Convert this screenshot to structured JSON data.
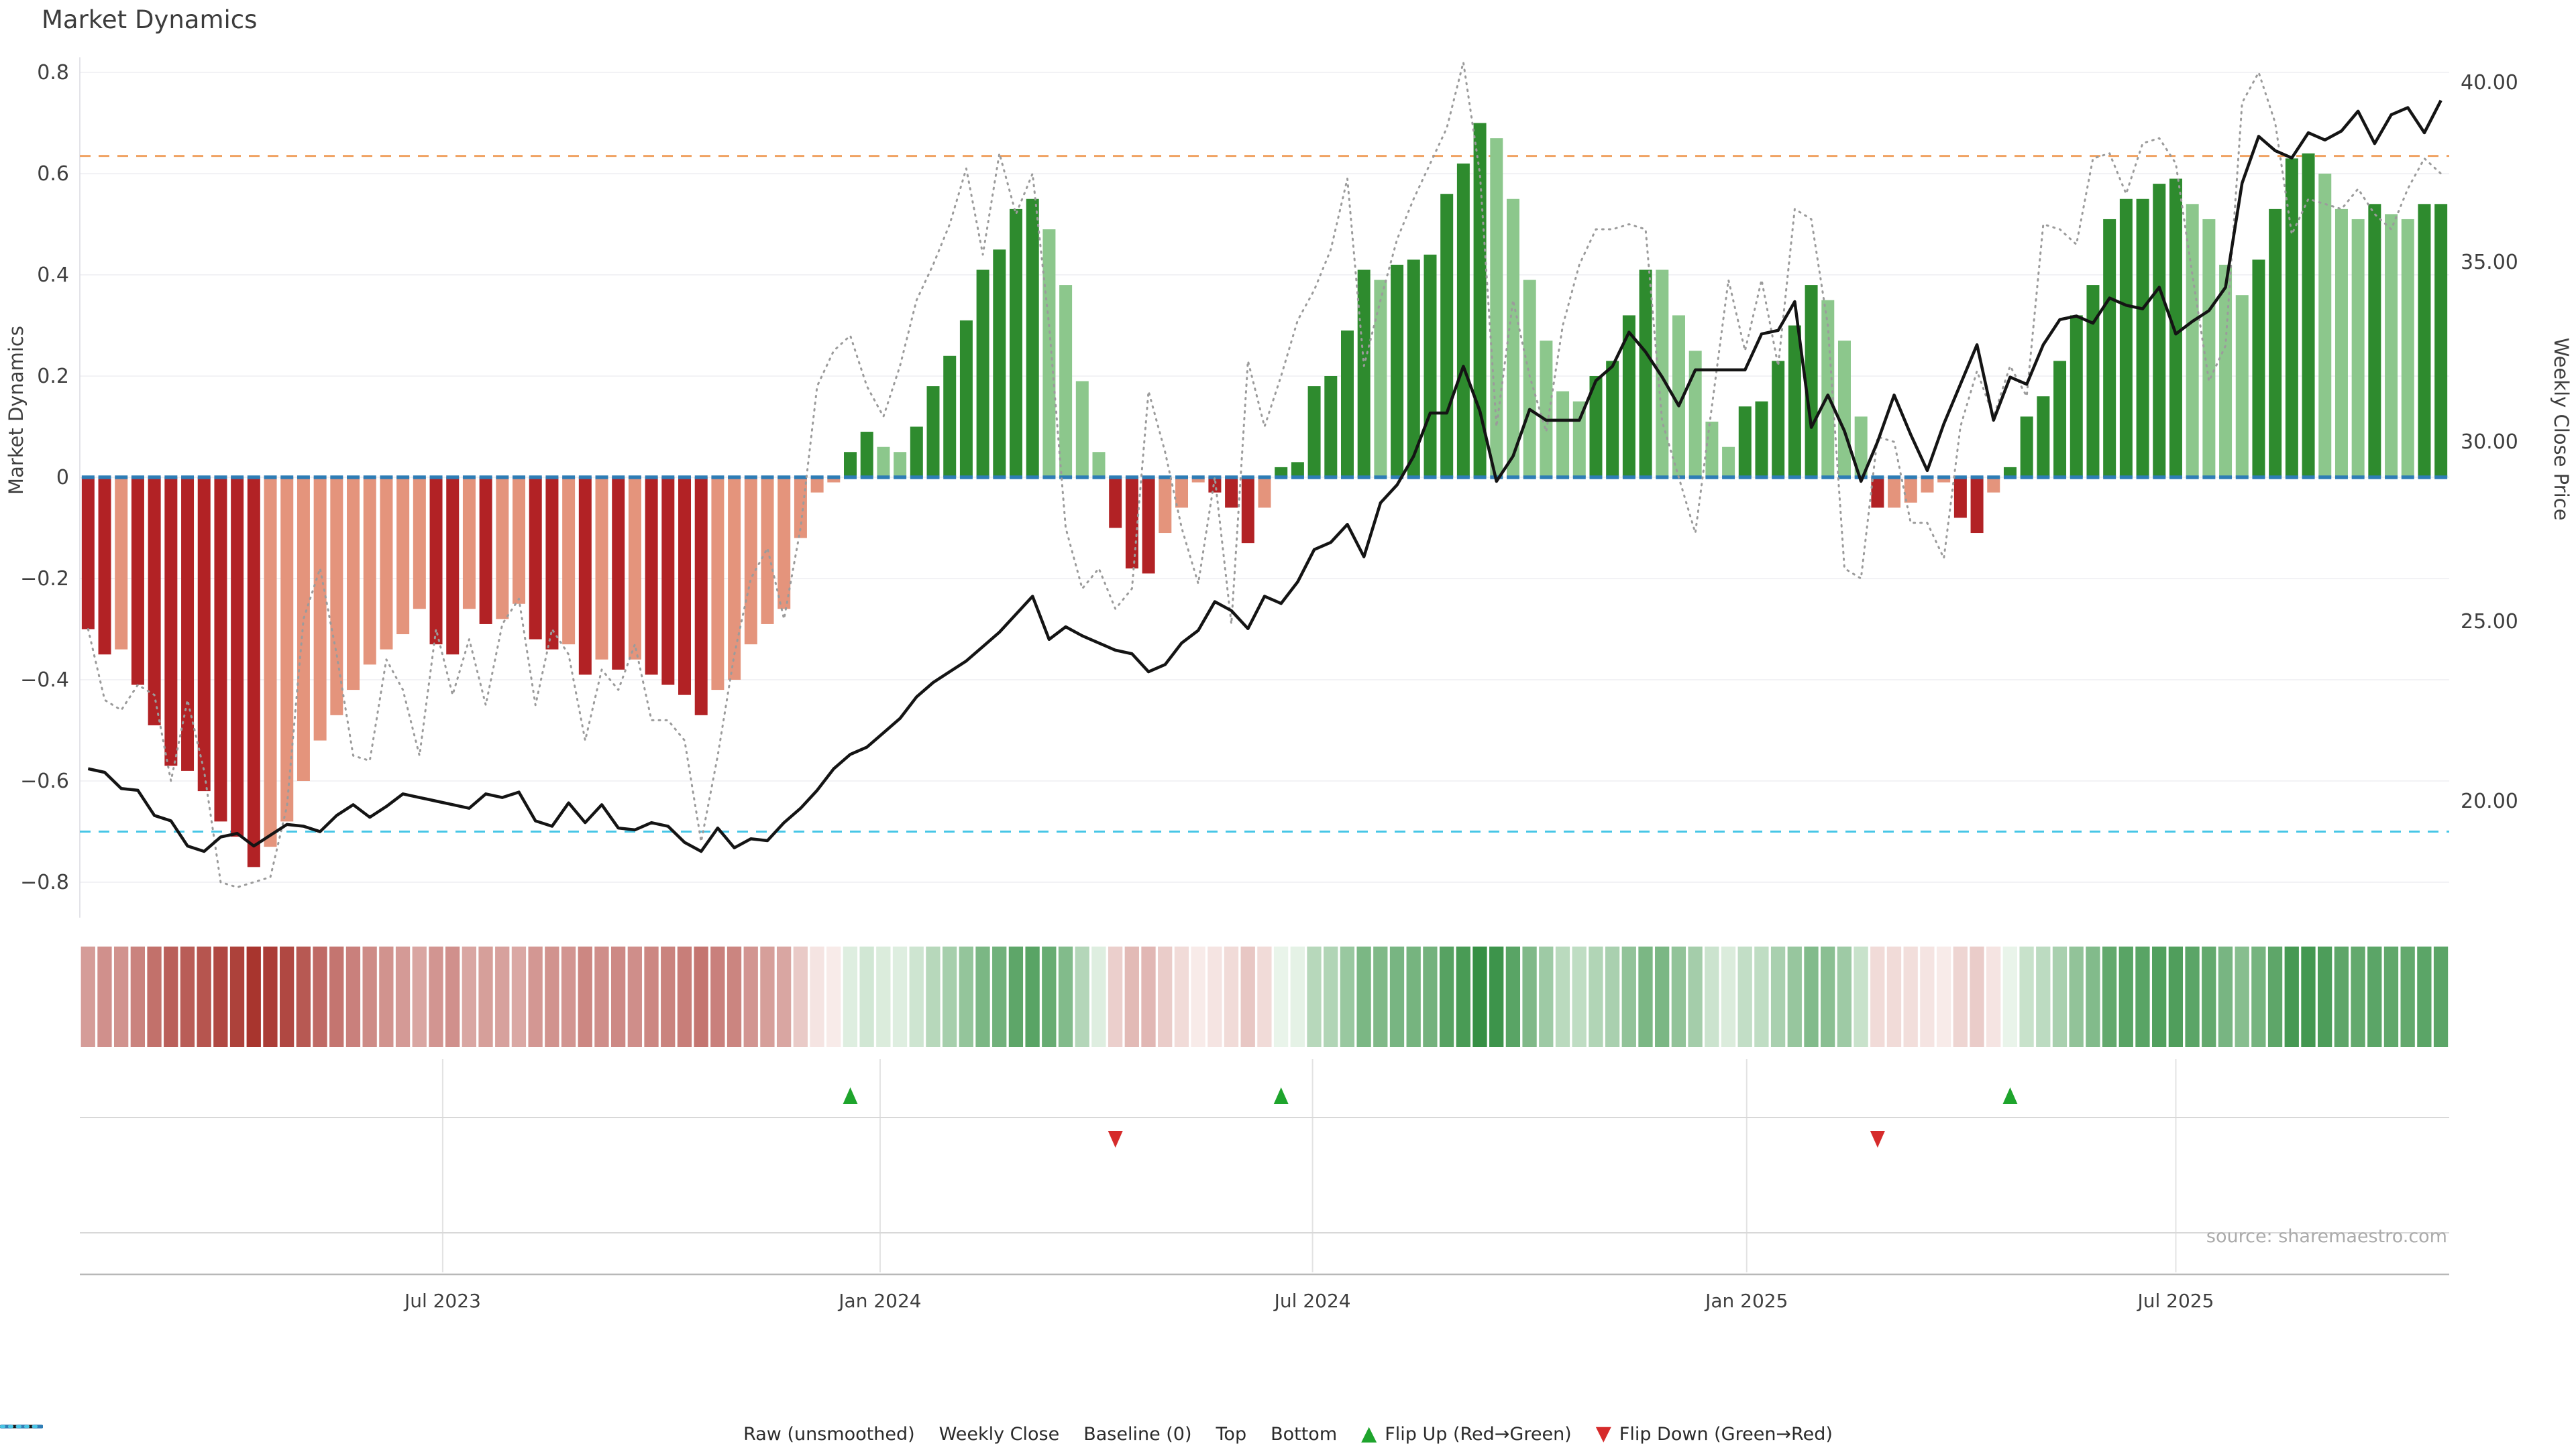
{
  "title": "Market Dynamics",
  "source": "source: sharemaestro.com",
  "axes": {
    "left": {
      "label": "Market Dynamics",
      "tick_values": [
        0.8,
        0.6,
        0.4,
        0.2,
        0,
        -0.2,
        -0.4,
        -0.6,
        -0.8
      ],
      "tick_labels": [
        "0.8",
        "0.6",
        "0.4",
        "0.2",
        "0",
        "−0.2",
        "−0.4",
        "−0.6",
        "−0.8"
      ]
    },
    "right": {
      "label": "Weekly Close Price",
      "tick_values": [
        40,
        35,
        30,
        25,
        20
      ],
      "tick_labels": [
        "40.00",
        "35.00",
        "30.00",
        "25.00",
        "20.00"
      ]
    },
    "x": {
      "tick_labels": [
        "Jul 2023",
        "Jan 2024",
        "Jul 2024",
        "Jan 2025",
        "Jul 2025"
      ],
      "tick_weeks": [
        21.4,
        47.8,
        73.9,
        100.1,
        126.0
      ]
    }
  },
  "reference_lines": {
    "baseline": {
      "label": "Baseline (0)",
      "value": 0
    },
    "top": {
      "label": "Top",
      "value": 0.635
    },
    "bottom": {
      "label": "Bottom",
      "value": -0.7
    }
  },
  "legend": {
    "items": [
      {
        "label": "Raw (unsmoothed)",
        "swatch": "dotted-gray"
      },
      {
        "label": "Weekly Close",
        "swatch": "solid-black"
      },
      {
        "label": "Baseline (0)",
        "swatch": "dashed-blue"
      },
      {
        "label": "Top",
        "swatch": "dotted-orange"
      },
      {
        "label": "Bottom",
        "swatch": "dotted-cyan"
      },
      {
        "label": "Flip Up (Red→Green)",
        "swatch": "tri-up-green"
      },
      {
        "label": "Flip Down (Green→Red)",
        "swatch": "tri-down-red"
      }
    ]
  },
  "colors": {
    "bar_dark_red": "#b22225",
    "bar_light_red": "#e4947c",
    "bar_dark_green": "#2e8b2e",
    "bar_light_green": "#8cc78c",
    "price_line": "#141414",
    "raw_line": "#9b9b9b",
    "baseline": "#2e7db6",
    "top_line": "#f0a364",
    "bottom_line": "#47c6e6",
    "flip_up": "#1ea42c",
    "flip_down": "#d62b2b",
    "heat_red_deep": "#a52f28",
    "heat_green_deep": "#2b8a3a",
    "grid": "#ededf2",
    "panel_grid": "#d8d8d8",
    "axis_line": "#b8b8b8",
    "text": "#3f3f3f",
    "source_text": "#ababab"
  },
  "chart_data": {
    "type": "combo (bar oscillator + heatmap strip + line overlays)",
    "weeks": 143,
    "ylim_left": [
      -0.87,
      0.83
    ],
    "ylim_right": [
      18.0,
      41.0
    ],
    "grid": true,
    "legend_position": "bottom-center",
    "oscillator": [
      -0.3,
      -0.35,
      -0.34,
      -0.41,
      -0.49,
      -0.57,
      -0.58,
      -0.62,
      -0.68,
      -0.71,
      -0.77,
      -0.73,
      -0.68,
      -0.6,
      -0.52,
      -0.47,
      -0.42,
      -0.37,
      -0.34,
      -0.31,
      -0.26,
      -0.33,
      -0.35,
      -0.26,
      -0.29,
      -0.28,
      -0.25,
      -0.32,
      -0.34,
      -0.33,
      -0.39,
      -0.36,
      -0.38,
      -0.36,
      -0.39,
      -0.41,
      -0.43,
      -0.47,
      -0.42,
      -0.4,
      -0.33,
      -0.29,
      -0.26,
      -0.12,
      -0.03,
      -0.01,
      0.05,
      0.09,
      0.06,
      0.05,
      0.1,
      0.18,
      0.24,
      0.31,
      0.41,
      0.45,
      0.53,
      0.55,
      0.49,
      0.38,
      0.19,
      0.05,
      -0.1,
      -0.18,
      -0.19,
      -0.11,
      -0.06,
      -0.01,
      -0.03,
      -0.06,
      -0.13,
      -0.06,
      0.02,
      0.03,
      0.18,
      0.2,
      0.29,
      0.41,
      0.39,
      0.42,
      0.43,
      0.44,
      0.56,
      0.62,
      0.7,
      0.67,
      0.55,
      0.39,
      0.27,
      0.17,
      0.15,
      0.2,
      0.23,
      0.32,
      0.41,
      0.41,
      0.32,
      0.25,
      0.11,
      0.06,
      0.14,
      0.15,
      0.23,
      0.3,
      0.38,
      0.35,
      0.27,
      0.12,
      -0.06,
      -0.06,
      -0.05,
      -0.03,
      -0.01,
      -0.08,
      -0.11,
      -0.03,
      0.02,
      0.12,
      0.16,
      0.23,
      0.32,
      0.38,
      0.51,
      0.55,
      0.55,
      0.58,
      0.59,
      0.54,
      0.51,
      0.42,
      0.36,
      0.43,
      0.53,
      0.63,
      0.64,
      0.6,
      0.53,
      0.51,
      0.54,
      0.52,
      0.51,
      0.54,
      0.54
    ],
    "bar_shades": [
      "d",
      "d",
      "l",
      "d",
      "d",
      "d",
      "d",
      "d",
      "d",
      "d",
      "d",
      "l",
      "l",
      "l",
      "l",
      "l",
      "l",
      "l",
      "l",
      "l",
      "l",
      "d",
      "d",
      "l",
      "d",
      "l",
      "l",
      "d",
      "d",
      "l",
      "d",
      "l",
      "d",
      "l",
      "d",
      "d",
      "d",
      "d",
      "l",
      "l",
      "l",
      "l",
      "l",
      "l",
      "l",
      "l",
      "d",
      "d",
      "l",
      "l",
      "d",
      "d",
      "d",
      "d",
      "d",
      "d",
      "d",
      "d",
      "l",
      "l",
      "l",
      "l",
      "d",
      "d",
      "d",
      "l",
      "l",
      "l",
      "d",
      "d",
      "d",
      "l",
      "d",
      "d",
      "d",
      "d",
      "d",
      "d",
      "l",
      "d",
      "d",
      "d",
      "d",
      "d",
      "d",
      "l",
      "l",
      "l",
      "l",
      "l",
      "l",
      "d",
      "d",
      "d",
      "d",
      "l",
      "l",
      "l",
      "l",
      "l",
      "d",
      "d",
      "d",
      "d",
      "d",
      "l",
      "l",
      "l",
      "d",
      "l",
      "l",
      "l",
      "l",
      "d",
      "d",
      "l",
      "d",
      "d",
      "d",
      "d",
      "d",
      "d",
      "d",
      "d",
      "d",
      "d",
      "d",
      "l",
      "l",
      "l",
      "l",
      "d",
      "d",
      "d",
      "d",
      "l",
      "l",
      "l",
      "d",
      "l",
      "l",
      "d",
      "d"
    ],
    "raw": [
      -0.3,
      -0.44,
      -0.46,
      -0.41,
      -0.43,
      -0.6,
      -0.44,
      -0.58,
      -0.8,
      -0.81,
      -0.8,
      -0.79,
      -0.65,
      -0.28,
      -0.18,
      -0.35,
      -0.55,
      -0.56,
      -0.36,
      -0.42,
      -0.55,
      -0.3,
      -0.43,
      -0.32,
      -0.45,
      -0.29,
      -0.24,
      -0.45,
      -0.3,
      -0.35,
      -0.52,
      -0.38,
      -0.42,
      -0.33,
      -0.48,
      -0.48,
      -0.52,
      -0.72,
      -0.55,
      -0.35,
      -0.2,
      -0.14,
      -0.28,
      -0.1,
      0.18,
      0.25,
      0.28,
      0.18,
      0.12,
      0.22,
      0.35,
      0.42,
      0.5,
      0.61,
      0.44,
      0.64,
      0.52,
      0.6,
      0.3,
      -0.1,
      -0.22,
      -0.18,
      -0.26,
      -0.22,
      0.17,
      0.05,
      -0.1,
      -0.21,
      0.0,
      -0.29,
      0.23,
      0.1,
      0.2,
      0.31,
      0.37,
      0.45,
      0.59,
      0.22,
      0.35,
      0.47,
      0.55,
      0.62,
      0.69,
      0.82,
      0.6,
      0.1,
      0.35,
      0.2,
      0.09,
      0.3,
      0.42,
      0.49,
      0.49,
      0.5,
      0.49,
      0.11,
      0.0,
      -0.11,
      0.14,
      0.39,
      0.25,
      0.39,
      0.22,
      0.53,
      0.51,
      0.3,
      -0.18,
      -0.2,
      0.08,
      0.07,
      -0.09,
      -0.09,
      -0.16,
      0.1,
      0.21,
      0.12,
      0.22,
      0.16,
      0.5,
      0.49,
      0.46,
      0.63,
      0.64,
      0.56,
      0.66,
      0.67,
      0.62,
      0.4,
      0.19,
      0.26,
      0.74,
      0.8,
      0.7,
      0.48,
      0.55,
      0.54,
      0.53,
      0.57,
      0.52,
      0.49,
      0.57,
      0.63,
      0.6
    ],
    "price": [
      20.9,
      20.8,
      20.35,
      20.3,
      19.6,
      19.45,
      18.75,
      18.6,
      19.0,
      19.1,
      18.75,
      19.05,
      19.35,
      19.3,
      19.15,
      19.6,
      19.9,
      19.55,
      19.85,
      20.2,
      20.1,
      20.0,
      19.9,
      19.8,
      20.2,
      20.1,
      20.25,
      19.45,
      19.3,
      19.95,
      19.4,
      19.9,
      19.25,
      19.2,
      19.4,
      19.3,
      18.85,
      18.6,
      19.25,
      18.7,
      18.95,
      18.9,
      19.4,
      19.8,
      20.3,
      20.9,
      21.3,
      21.5,
      21.9,
      22.3,
      22.9,
      23.3,
      23.6,
      23.9,
      24.3,
      24.7,
      25.2,
      25.7,
      24.5,
      24.85,
      24.6,
      24.4,
      24.2,
      24.1,
      23.6,
      23.8,
      24.4,
      24.75,
      25.55,
      25.3,
      24.8,
      25.7,
      25.5,
      26.1,
      27.0,
      27.2,
      27.7,
      26.8,
      28.3,
      28.8,
      29.6,
      30.8,
      30.8,
      32.1,
      30.85,
      28.9,
      29.6,
      30.9,
      30.6,
      30.6,
      30.6,
      31.7,
      32.1,
      33.05,
      32.5,
      31.8,
      31.0,
      32.0,
      32.0,
      32.0,
      32.0,
      33.0,
      33.1,
      33.9,
      30.4,
      31.3,
      30.3,
      28.9,
      30.0,
      31.3,
      30.2,
      29.2,
      30.5,
      31.6,
      32.7,
      30.6,
      31.8,
      31.6,
      32.7,
      33.4,
      33.5,
      33.3,
      34.0,
      33.8,
      33.7,
      34.3,
      33.0,
      33.35,
      33.65,
      34.3,
      37.2,
      38.5,
      38.1,
      37.9,
      38.6,
      38.4,
      38.65,
      39.2,
      38.3,
      39.1,
      39.3,
      38.6,
      39.5
    ],
    "flip_up_weeks": [
      46,
      72,
      116
    ],
    "flip_down_weeks": [
      62,
      108
    ],
    "heatmap": "weekly strip, color-mapped from oscillator values (red negative / green positive, intensity = magnitude)"
  }
}
